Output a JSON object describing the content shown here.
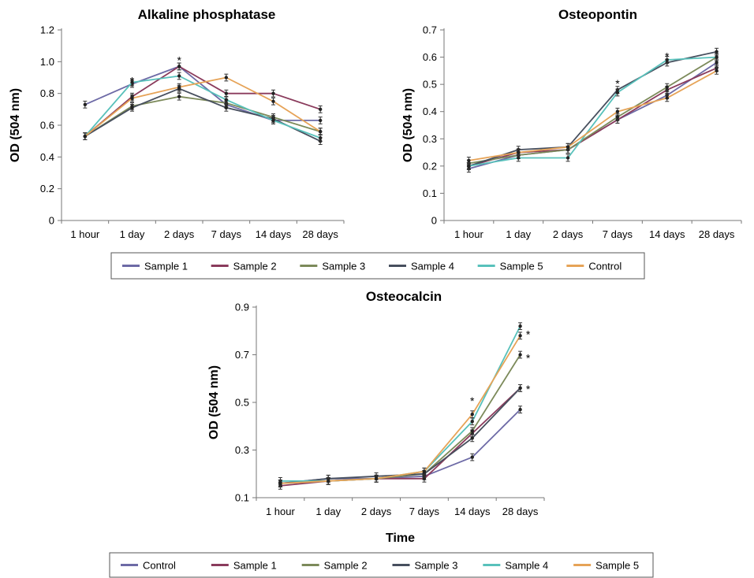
{
  "chart_data": [
    {
      "type": "line",
      "title": "Alkaline phosphatase",
      "ylabel": "OD (504 nm)",
      "xlabel": "",
      "categories": [
        "1 hour",
        "1 day",
        "2 days",
        "7 days",
        "14 days",
        "28 days"
      ],
      "ylim": [
        0,
        1.2
      ],
      "yticks": [
        "0",
        "0.2",
        "0.4",
        "0.6",
        "0.8",
        "1.0",
        "1.2"
      ],
      "yticks_values": [
        0,
        0.2,
        0.4,
        0.6,
        0.8,
        1.0,
        1.2
      ],
      "series": [
        {
          "name": "Sample 1",
          "color": "#6d6aa6",
          "values": [
            0.73,
            0.86,
            0.97,
            0.73,
            0.63,
            0.63
          ]
        },
        {
          "name": "Sample 2",
          "color": "#8a3b5c",
          "values": [
            0.53,
            0.78,
            0.97,
            0.8,
            0.8,
            0.7
          ]
        },
        {
          "name": "Sample 3",
          "color": "#7c8a5a",
          "values": [
            0.53,
            0.72,
            0.78,
            0.74,
            0.65,
            0.56
          ]
        },
        {
          "name": "Sample 4",
          "color": "#474f5e",
          "values": [
            0.53,
            0.71,
            0.83,
            0.71,
            0.64,
            0.5
          ]
        },
        {
          "name": "Sample 5",
          "color": "#58c1bb",
          "values": [
            0.53,
            0.87,
            0.91,
            0.76,
            0.63,
            0.52
          ]
        },
        {
          "name": "Control",
          "color": "#e6a357",
          "values": [
            0.53,
            0.77,
            0.84,
            0.9,
            0.75,
            0.56
          ]
        }
      ],
      "annotations": [
        {
          "text": "*",
          "category": "1 day",
          "y": 0.9
        },
        {
          "text": "*",
          "category": "2 days",
          "y": 1.03
        }
      ],
      "grid": false
    },
    {
      "type": "line",
      "title": "Osteopontin",
      "ylabel": "OD (504 nm)",
      "xlabel": "",
      "categories": [
        "1 hour",
        "1 day",
        "2 days",
        "7 days",
        "14 days",
        "28 days"
      ],
      "ylim": [
        0,
        0.7
      ],
      "yticks": [
        "0",
        "0.1",
        "0.2",
        "0.3",
        "0.4",
        "0.5",
        "0.6",
        "0.7"
      ],
      "yticks_values": [
        0,
        0.1,
        0.2,
        0.3,
        0.4,
        0.5,
        0.6,
        0.7
      ],
      "series": [
        {
          "name": "Sample 1",
          "color": "#6d6aa6",
          "values": [
            0.19,
            0.24,
            0.26,
            0.37,
            0.46,
            0.58
          ]
        },
        {
          "name": "Sample 2",
          "color": "#8a3b5c",
          "values": [
            0.2,
            0.25,
            0.26,
            0.37,
            0.48,
            0.56
          ]
        },
        {
          "name": "Sample 3",
          "color": "#7c8a5a",
          "values": [
            0.21,
            0.24,
            0.26,
            0.38,
            0.49,
            0.6
          ]
        },
        {
          "name": "Sample 4",
          "color": "#474f5e",
          "values": [
            0.2,
            0.26,
            0.27,
            0.48,
            0.58,
            0.62
          ]
        },
        {
          "name": "Sample 5",
          "color": "#58c1bb",
          "values": [
            0.2,
            0.23,
            0.23,
            0.47,
            0.59,
            0.6
          ]
        },
        {
          "name": "Control",
          "color": "#e6a357",
          "values": [
            0.22,
            0.25,
            0.27,
            0.4,
            0.45,
            0.55
          ]
        }
      ],
      "annotations": [
        {
          "text": "*",
          "category": "7 days",
          "y": 0.515
        },
        {
          "text": "*",
          "category": "14 days",
          "y": 0.615
        }
      ],
      "grid": false
    },
    {
      "type": "line",
      "title": "Osteocalcin",
      "ylabel": "OD (504 nm)",
      "xlabel": "Time",
      "categories": [
        "1 hour",
        "1 day",
        "2 days",
        "7 days",
        "14 days",
        "28 days"
      ],
      "ylim": [
        0.1,
        0.9
      ],
      "yticks": [
        "0.1",
        "0.3",
        "0.5",
        "0.7",
        "0.9"
      ],
      "yticks_values": [
        0.1,
        0.3,
        0.5,
        0.7,
        0.9
      ],
      "series": [
        {
          "name": "Control",
          "color": "#6d6aa6",
          "values": [
            0.16,
            0.18,
            0.18,
            0.19,
            0.27,
            0.47
          ]
        },
        {
          "name": "Sample 1",
          "color": "#8a3b5c",
          "values": [
            0.15,
            0.17,
            0.18,
            0.18,
            0.37,
            0.56
          ]
        },
        {
          "name": "Sample 2",
          "color": "#7c8a5a",
          "values": [
            0.16,
            0.17,
            0.18,
            0.2,
            0.38,
            0.7
          ]
        },
        {
          "name": "Sample 3",
          "color": "#474f5e",
          "values": [
            0.16,
            0.18,
            0.19,
            0.2,
            0.35,
            0.56
          ]
        },
        {
          "name": "Sample 4",
          "color": "#58c1bb",
          "values": [
            0.17,
            0.17,
            0.18,
            0.21,
            0.42,
            0.82
          ]
        },
        {
          "name": "Sample 5",
          "color": "#e6a357",
          "values": [
            0.16,
            0.17,
            0.18,
            0.21,
            0.45,
            0.78
          ]
        }
      ],
      "annotations": [
        {
          "text": "*",
          "category": "14 days",
          "y": 0.52
        },
        {
          "text": "*",
          "category": "28 days",
          "y": 0.8
        },
        {
          "text": "*",
          "category": "28 days",
          "y": 0.7
        },
        {
          "text": "*",
          "category": "28 days",
          "y": 0.57
        }
      ],
      "grid": false
    }
  ],
  "legends": [
    [
      "Sample 1",
      "Sample 2",
      "Sample 3",
      "Sample 4",
      "Sample 5",
      "Control"
    ],
    [
      "Control",
      "Sample 1",
      "Sample 2",
      "Sample 3",
      "Sample 4",
      "Sample 5"
    ]
  ]
}
